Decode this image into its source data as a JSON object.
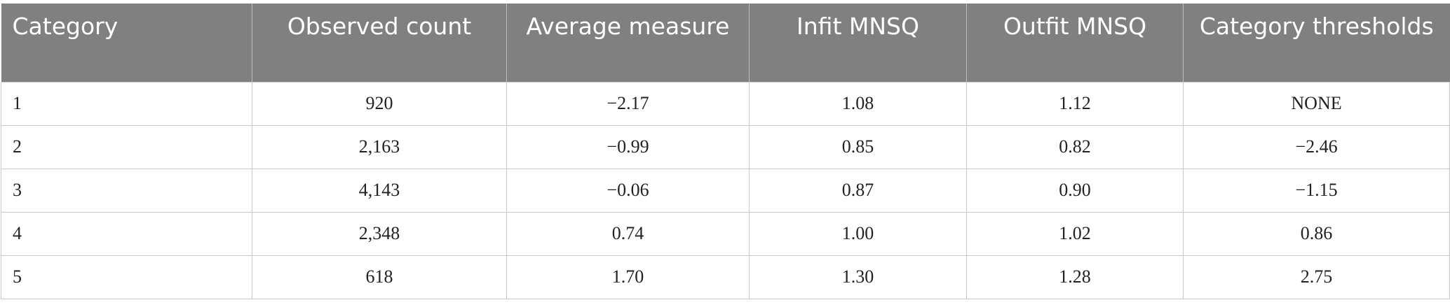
{
  "table": {
    "header": [
      "Category",
      "Observed count",
      "Average measure",
      "Infit MNSQ",
      "Outfit MNSQ",
      "Category thresholds"
    ],
    "rows": [
      [
        "1",
        "920",
        "−2.17",
        "1.08",
        "1.12",
        "NONE"
      ],
      [
        "2",
        "2,163",
        "−0.99",
        "0.85",
        "0.82",
        "−2.46"
      ],
      [
        "3",
        "4,143",
        "−0.06",
        "0.87",
        "0.90",
        "−1.15"
      ],
      [
        "4",
        "2,348",
        "0.74",
        "1.00",
        "1.02",
        "0.86"
      ],
      [
        "5",
        "618",
        "1.70",
        "1.30",
        "1.28",
        "2.75"
      ]
    ]
  }
}
